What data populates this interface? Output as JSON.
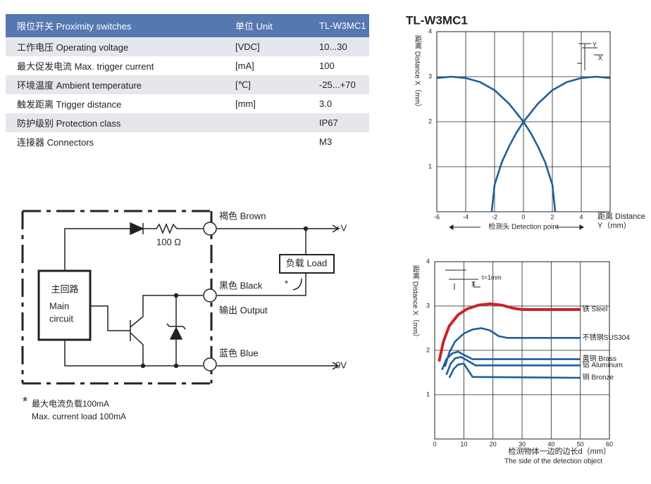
{
  "table": {
    "header": [
      "限位开关 Proximity switches",
      "单位 Unit",
      "TL-W3MC1"
    ],
    "rows": [
      [
        "工作电压 Operating voltage",
        "[VDC]",
        "10...30"
      ],
      [
        "最大促发电流 Max. trigger current",
        "[mA]",
        "100"
      ],
      [
        "环境温度 Ambient temperature",
        "[℃]",
        "-25...+70"
      ],
      [
        "触发距离 Trigger distance",
        "[mm]",
        "3.0"
      ],
      [
        "防护级别 Protection class",
        "",
        "IP67"
      ],
      [
        "连接器 Connectors",
        "",
        "M3"
      ]
    ]
  },
  "circuit": {
    "brown": "褐色 Brown",
    "plus_v": "+V",
    "resistor": "100 Ω",
    "load": "负载 Load",
    "black": "黑色 Black",
    "star": "*",
    "output": "输出 Output",
    "blue": "蓝色 Blue",
    "zero_v": "0V",
    "main_cn": "主回路",
    "main_en1": "Main",
    "main_en2": "circuit",
    "note_star": "*",
    "note_cn": "最大电流负载100mA",
    "note_en": "Max. current load 100mA"
  },
  "chart_data": [
    {
      "type": "line",
      "title": "TL-W3MC1",
      "y_label": "距离 Distance X（mm）",
      "x_label": [
        "距离 Distance",
        "Y（mm）"
      ],
      "annotation": "检测头 Detection point",
      "inset": [
        "Y",
        "X"
      ],
      "xlim": [
        -6,
        6
      ],
      "xticks": [
        -6,
        -4,
        -2,
        0,
        2,
        4
      ],
      "ylim": [
        0,
        4
      ],
      "yticks": [
        1,
        2,
        3,
        4
      ],
      "grid": true,
      "series": [
        {
          "color": "#1f5f9c",
          "x": [
            -6,
            -5,
            -4,
            -3,
            -2,
            -1,
            0,
            0.5,
            1,
            1.5,
            2,
            2.2
          ],
          "values": [
            2.97,
            3.0,
            2.97,
            2.88,
            2.7,
            2.4,
            2.0,
            1.75,
            1.45,
            1.1,
            0.6,
            0
          ]
        },
        {
          "color": "#1f5f9c",
          "x": [
            -2.2,
            -2,
            -1.5,
            -1,
            -0.5,
            0,
            1,
            2,
            3,
            4,
            5,
            6
          ],
          "values": [
            0,
            0.6,
            1.1,
            1.45,
            1.75,
            2.0,
            2.4,
            2.7,
            2.88,
            2.97,
            3.0,
            2.97
          ]
        }
      ]
    },
    {
      "type": "line",
      "y_label": "距离 Distance X（mm）",
      "x_label": [
        "检测物体一边的边长d（mm）",
        "The side of the detection object"
      ],
      "inset": [
        "X",
        "t=1mm"
      ],
      "xlim": [
        0,
        60
      ],
      "xticks": [
        0,
        10,
        20,
        30,
        40,
        50,
        60
      ],
      "ylim": [
        0,
        4
      ],
      "yticks": [
        1,
        2,
        3,
        4
      ],
      "grid": true,
      "series": [
        {
          "name": "铁 Steel",
          "color": "#c8242b",
          "x": [
            1.5,
            3,
            5,
            8,
            11,
            15,
            19,
            23,
            27,
            30,
            40,
            50
          ],
          "values": [
            1.75,
            2.2,
            2.55,
            2.8,
            2.93,
            3.02,
            3.05,
            3.02,
            2.95,
            2.92,
            2.92,
            2.92
          ]
        },
        {
          "name": "不锈钢SUS304",
          "color": "#1f5f9c",
          "x": [
            3.5,
            5,
            7,
            10,
            13,
            16,
            19,
            22,
            25,
            50
          ],
          "values": [
            1.63,
            1.95,
            2.2,
            2.38,
            2.47,
            2.5,
            2.45,
            2.32,
            2.28,
            2.28
          ]
        },
        {
          "name": "黄铜 Brass",
          "color": "#1f5f9c",
          "x": [
            2.5,
            4,
            6,
            8,
            10,
            13,
            50
          ],
          "values": [
            1.56,
            1.8,
            1.93,
            1.97,
            1.9,
            1.8,
            1.8
          ]
        },
        {
          "name": "铝 Aluminum",
          "color": "#1f5f9c",
          "x": [
            4,
            5.5,
            7,
            9,
            11,
            14,
            50
          ],
          "values": [
            1.45,
            1.7,
            1.82,
            1.85,
            1.78,
            1.66,
            1.66
          ]
        },
        {
          "name": "铜 Bronze",
          "color": "#1f5f9c",
          "x": [
            5,
            6.5,
            8,
            10,
            12,
            13,
            50
          ],
          "values": [
            1.38,
            1.58,
            1.68,
            1.7,
            1.5,
            1.4,
            1.38
          ]
        }
      ]
    }
  ]
}
